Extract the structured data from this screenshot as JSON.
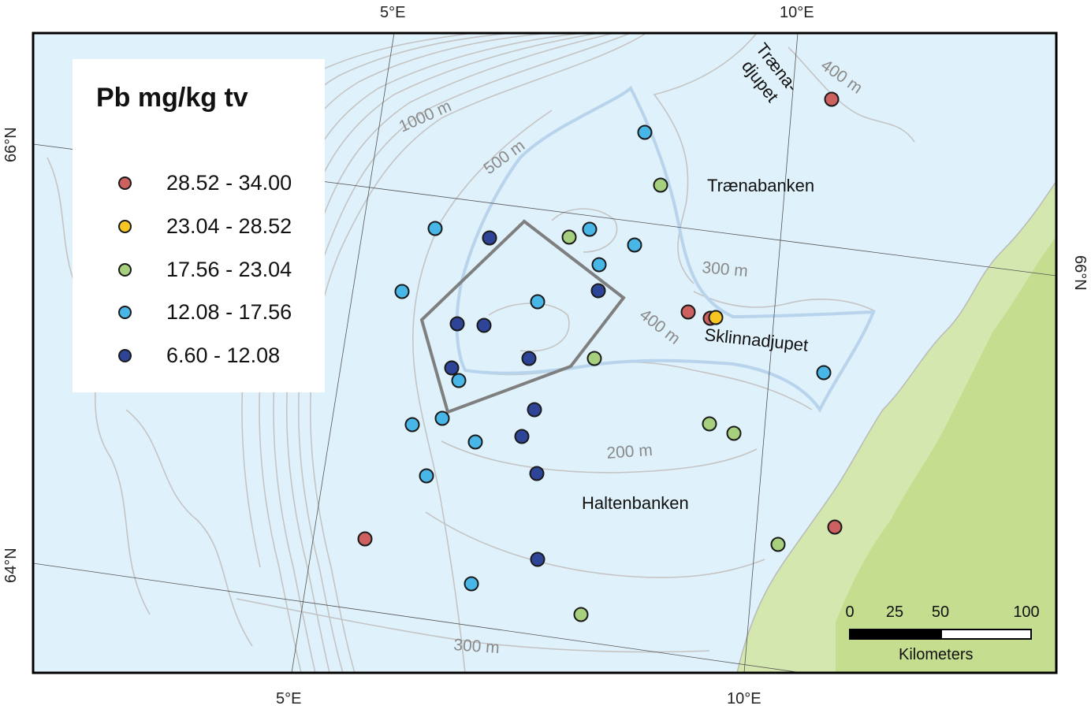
{
  "legend": {
    "title": "Pb mg/kg tv",
    "classes": [
      {
        "label": "28.52 - 34.00",
        "color": "#cc6160"
      },
      {
        "label": "23.04 - 28.52",
        "color": "#f7c623"
      },
      {
        "label": "17.56 - 23.04",
        "color": "#a6cf7e"
      },
      {
        "label": "12.08 - 17.56",
        "color": "#48b7e8"
      },
      {
        "label": "6.60 - 12.08",
        "color": "#2e4597"
      }
    ]
  },
  "graticule": {
    "top": [
      "5°E",
      "10°E"
    ],
    "bottom": [
      "5°E",
      "10°E"
    ],
    "left": [
      "66°N",
      "64°N"
    ],
    "right": [
      "66°N"
    ]
  },
  "places": {
    "traenadjupet_1": "Træna-",
    "traenadjupet_2": "djupet",
    "traenabanken": "Trænabanken",
    "sklinnadjupet": "Sklinnadjupet",
    "haltenbanken": "Haltenbanken"
  },
  "depth_labels": {
    "d1000": "1000 m",
    "d500": "500 m",
    "d400a": "400 m",
    "d300a": "300 m",
    "d400b": "400 m",
    "d200": "200 m",
    "d300b": "300 m"
  },
  "scalebar": {
    "ticks": [
      "0",
      "25",
      "50",
      "100"
    ],
    "unit": "Kilometers"
  },
  "colors": {
    "sea": "#dff1fa",
    "land": "#d4e7ae",
    "contour": "#bfbfbf",
    "survey_polygon": "#7f7f7f",
    "trough_outline": "#b8d4ec"
  },
  "samples": [
    {
      "class": 0
    },
    {
      "class": 3
    },
    {
      "class": 2
    },
    {
      "class": 3
    },
    {
      "class": 4
    },
    {
      "class": 2
    },
    {
      "class": 3
    },
    {
      "class": 3
    },
    {
      "class": 3
    },
    {
      "class": 3
    },
    {
      "class": 4
    },
    {
      "class": 3
    },
    {
      "class": 0
    },
    {
      "class": 0
    },
    {
      "class": 1
    },
    {
      "class": 4
    },
    {
      "class": 4
    },
    {
      "class": 4
    },
    {
      "class": 3
    },
    {
      "class": 2
    },
    {
      "class": 3
    },
    {
      "class": 4
    },
    {
      "class": 3
    },
    {
      "class": 3
    },
    {
      "class": 4
    },
    {
      "class": 4
    },
    {
      "class": 3
    },
    {
      "class": 2
    },
    {
      "class": 2
    },
    {
      "class": 3
    },
    {
      "class": 4
    },
    {
      "class": 0
    },
    {
      "class": 0
    },
    {
      "class": 2
    },
    {
      "class": 4
    },
    {
      "class": 3
    },
    {
      "class": 2
    }
  ]
}
